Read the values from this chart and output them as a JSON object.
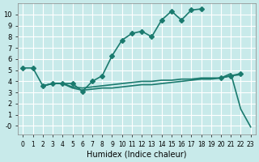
{
  "xlabel": "Humidex (Indice chaleur)",
  "background_color": "#c8eaea",
  "grid_color": "#ffffff",
  "line_color": "#1a7a6e",
  "x_ticks": [
    0,
    1,
    2,
    3,
    4,
    5,
    6,
    7,
    8,
    9,
    10,
    11,
    12,
    13,
    14,
    15,
    16,
    17,
    18,
    19,
    20,
    21,
    22,
    23
  ],
  "y_ticks": [
    0,
    1,
    2,
    3,
    4,
    5,
    6,
    7,
    8,
    9,
    10
  ],
  "y_tick_labels": [
    "-0",
    "1",
    "2",
    "3",
    "4",
    "5",
    "6",
    "7",
    "8",
    "9",
    "10"
  ],
  "ylim": [
    -0.8,
    11
  ],
  "xlim": [
    -0.5,
    23.5
  ],
  "series": [
    {
      "x": [
        0,
        1,
        2,
        3,
        4,
        5,
        6,
        7,
        8,
        9,
        10,
        11,
        12,
        13,
        14,
        15,
        16,
        17,
        18,
        19,
        20,
        21,
        22
      ],
      "y": [
        5.2,
        5.2,
        3.6,
        3.8,
        3.8,
        3.8,
        3.1,
        4.0,
        4.5,
        6.3,
        7.7,
        8.3,
        8.5,
        8.0,
        9.5,
        10.3,
        9.5,
        10.4,
        10.5,
        null,
        4.3,
        4.5,
        4.7
      ],
      "marker": "D",
      "markersize": 3,
      "linewidth": 1.2
    },
    {
      "x": [
        2,
        3,
        4,
        5,
        6,
        7,
        8,
        9,
        10,
        11,
        12,
        13,
        14,
        15,
        16,
        17,
        18,
        19,
        20,
        21,
        22
      ],
      "y": [
        3.6,
        3.8,
        3.8,
        3.5,
        3.4,
        3.5,
        3.6,
        3.7,
        3.8,
        3.9,
        4.0,
        4.0,
        4.1,
        4.1,
        4.2,
        4.2,
        4.3,
        4.3,
        4.3,
        4.5,
        4.6
      ],
      "marker": null,
      "markersize": 0,
      "linewidth": 1.2
    },
    {
      "x": [
        2,
        3,
        4,
        5,
        6,
        7,
        8,
        9,
        10,
        11,
        12,
        13,
        14,
        15,
        16,
        17,
        18,
        19,
        20,
        21,
        22,
        23
      ],
      "y": [
        3.6,
        3.8,
        3.8,
        3.4,
        3.2,
        3.3,
        3.4,
        3.4,
        3.5,
        3.6,
        3.7,
        3.7,
        3.8,
        3.9,
        4.0,
        4.1,
        4.2,
        4.2,
        4.3,
        4.7,
        1.5,
        -0.1
      ],
      "marker": null,
      "markersize": 0,
      "linewidth": 1.2
    }
  ]
}
